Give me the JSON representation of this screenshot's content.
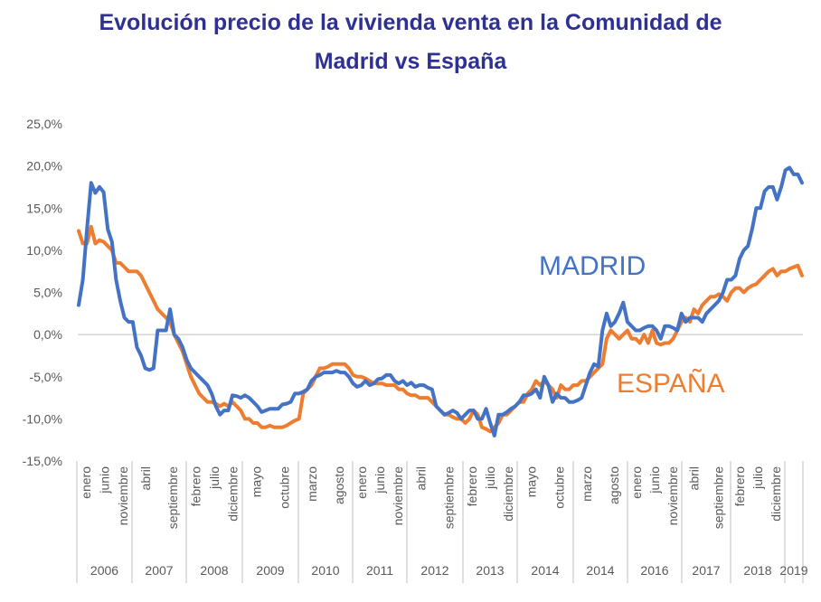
{
  "chart_data": {
    "type": "line",
    "title_lines": [
      "Evolución precio de la vivienda venta en la Comunidad de",
      "Madrid vs España"
    ],
    "xlabel": "",
    "ylabel": "",
    "ylim": [
      -15,
      25
    ],
    "yticks": [
      -15,
      -10,
      -5,
      0,
      5,
      10,
      15,
      20,
      25
    ],
    "ytick_labels": [
      "-15,0%",
      "-10,0%",
      "-5,0%",
      "0,0%",
      "5,0%",
      "10,0%",
      "15,0%",
      "20,0%",
      "25,0%"
    ],
    "grid": false,
    "legend": "none",
    "years": [
      {
        "label": "2006",
        "months": [
          "enero",
          "junio",
          "noviembre"
        ]
      },
      {
        "label": "2007",
        "months": [
          "abril",
          "septiembre"
        ]
      },
      {
        "label": "2008",
        "months": [
          "febrero",
          "julio",
          "diciembre"
        ]
      },
      {
        "label": "2009",
        "months": [
          "mayo",
          "octubre"
        ]
      },
      {
        "label": "2010",
        "months": [
          "marzo",
          "agosto"
        ]
      },
      {
        "label": "2011",
        "months": [
          "enero",
          "junio",
          "noviembre"
        ]
      },
      {
        "label": "2012",
        "months": [
          "abril",
          "septiembre"
        ]
      },
      {
        "label": "2013",
        "months": [
          "febrero",
          "julio",
          "diciembre"
        ]
      },
      {
        "label": "2014",
        "months": [
          "mayo",
          "octubre"
        ]
      },
      {
        "label": "2014",
        "months": [
          "marzo",
          "agosto"
        ]
      },
      {
        "label": "2016",
        "months": [
          "enero",
          "junio",
          "noviembre"
        ]
      },
      {
        "label": "2017",
        "months": [
          "abril",
          "septiembre"
        ]
      },
      {
        "label": "2018",
        "months": [
          "febrero",
          "julio",
          "diciembre"
        ]
      },
      {
        "label": "2019",
        "months": []
      }
    ],
    "series": [
      {
        "name": "MADRID",
        "color": "#4472C4",
        "values": [
          3.5,
          6.5,
          12.5,
          18,
          16.8,
          17.5,
          16.9,
          12.5,
          11,
          6.5,
          4,
          2,
          1.5,
          1.5,
          -1.5,
          -2.5,
          -4,
          -4.2,
          -4,
          0.5,
          0.5,
          0.5,
          3,
          0,
          -0.5,
          -1.5,
          -3,
          -4,
          -4.5,
          -5,
          -5.5,
          -6,
          -7,
          -8.5,
          -9.5,
          -9,
          -9,
          -7.2,
          -7.3,
          -7.5,
          -7.2,
          -7.5,
          -8,
          -8.5,
          -9.2,
          -9,
          -8.8,
          -8.8,
          -8.8,
          -8.3,
          -8.2,
          -8,
          -7,
          -7,
          -6.8,
          -6.5,
          -5.5,
          -5,
          -4.8,
          -4.5,
          -4.5,
          -4.5,
          -4.3,
          -4.5,
          -4.5,
          -5,
          -5.8,
          -6.2,
          -6,
          -5.5,
          -6,
          -5.8,
          -5.3,
          -5.2,
          -4.8,
          -4.8,
          -5.5,
          -5.8,
          -5.5,
          -6,
          -5.7,
          -6.2,
          -6,
          -6,
          -6.3,
          -6.5,
          -8.5,
          -9,
          -9.5,
          -9.3,
          -9,
          -9.3,
          -10,
          -9.5,
          -9,
          -9,
          -10,
          -10,
          -8.8,
          -10.5,
          -12,
          -9.5,
          -9.5,
          -9.2,
          -8.8,
          -8.5,
          -8,
          -7.2,
          -7.2,
          -7,
          -6.5,
          -7.5,
          -5,
          -6,
          -8,
          -7,
          -7.5,
          -7.5,
          -8,
          -8,
          -7.8,
          -7.5,
          -6,
          -4.5,
          -3.5,
          -3.8,
          0.5,
          2.5,
          1,
          1.5,
          2.5,
          3.8,
          1.5,
          1,
          0.5,
          0.5,
          0.8,
          1,
          1,
          0.5,
          -0.5,
          1,
          1,
          0.8,
          0.5,
          2.5,
          1.5,
          2,
          2,
          2,
          1.5,
          2.5,
          3,
          3.5,
          4,
          5,
          6.5,
          6.5,
          7,
          9,
          10,
          10.5,
          12.5,
          15,
          15,
          17,
          17.5,
          17.5,
          16,
          17.5,
          19.5,
          19.8,
          19,
          19,
          18
        ]
      },
      {
        "name": "ESPAÑA",
        "color": "#ED7D31",
        "values": [
          12.3,
          10.8,
          10.8,
          12.8,
          10.8,
          11.2,
          11,
          10.5,
          10,
          8.5,
          8.5,
          8,
          7.5,
          7.5,
          7.5,
          7,
          6,
          5,
          4,
          3,
          2.5,
          2,
          1.5,
          0,
          -1,
          -2,
          -3.5,
          -5,
          -6,
          -7,
          -7.5,
          -8,
          -8,
          -8.2,
          -8.5,
          -8.2,
          -8.5,
          -8,
          -8.5,
          -9,
          -10,
          -10,
          -10.5,
          -10.5,
          -11,
          -11,
          -10.8,
          -11,
          -11,
          -11,
          -10.8,
          -10.5,
          -10.2,
          -10,
          -7,
          -6.5,
          -6,
          -5,
          -4,
          -4,
          -3.8,
          -3.5,
          -3.5,
          -3.5,
          -3.5,
          -4,
          -4.8,
          -5,
          -5,
          -5.2,
          -5.5,
          -5.8,
          -5.8,
          -5.8,
          -6,
          -6,
          -6,
          -6.5,
          -6.5,
          -7,
          -7.2,
          -7.2,
          -7.5,
          -7.5,
          -7.5,
          -8,
          -8.5,
          -9,
          -9.5,
          -9.5,
          -9.8,
          -10,
          -10,
          -10.5,
          -10,
          -9,
          -9.5,
          -11,
          -11.2,
          -11.5,
          -11,
          -10.5,
          -9.5,
          -9.5,
          -9,
          -8.5,
          -8,
          -8,
          -7,
          -6.5,
          -5.5,
          -6,
          -5.5,
          -6,
          -6.5,
          -7.5,
          -6,
          -6.5,
          -6.5,
          -6,
          -6,
          -5.5,
          -5.5,
          -5,
          -4.5,
          -4,
          -3.5,
          -0.5,
          0.5,
          0,
          -0.5,
          0,
          0.5,
          -0.5,
          -0.5,
          -1,
          0,
          -1,
          0.5,
          -1,
          -1.2,
          -1,
          -1,
          -0.5,
          0.5,
          1.5,
          2,
          1.5,
          3,
          2.5,
          3.5,
          4,
          4.5,
          4.5,
          4.8,
          4.5,
          4,
          5,
          5.5,
          5.5,
          5,
          5.5,
          5.8,
          6,
          6.5,
          7,
          7.5,
          7.8,
          7,
          7.5,
          7.5,
          7.8,
          8,
          8.2,
          7
        ]
      }
    ],
    "annotations": [
      {
        "text": "MADRID",
        "color": "#4472C4"
      },
      {
        "text": "ESPAÑA",
        "color": "#ED7D31"
      }
    ]
  }
}
